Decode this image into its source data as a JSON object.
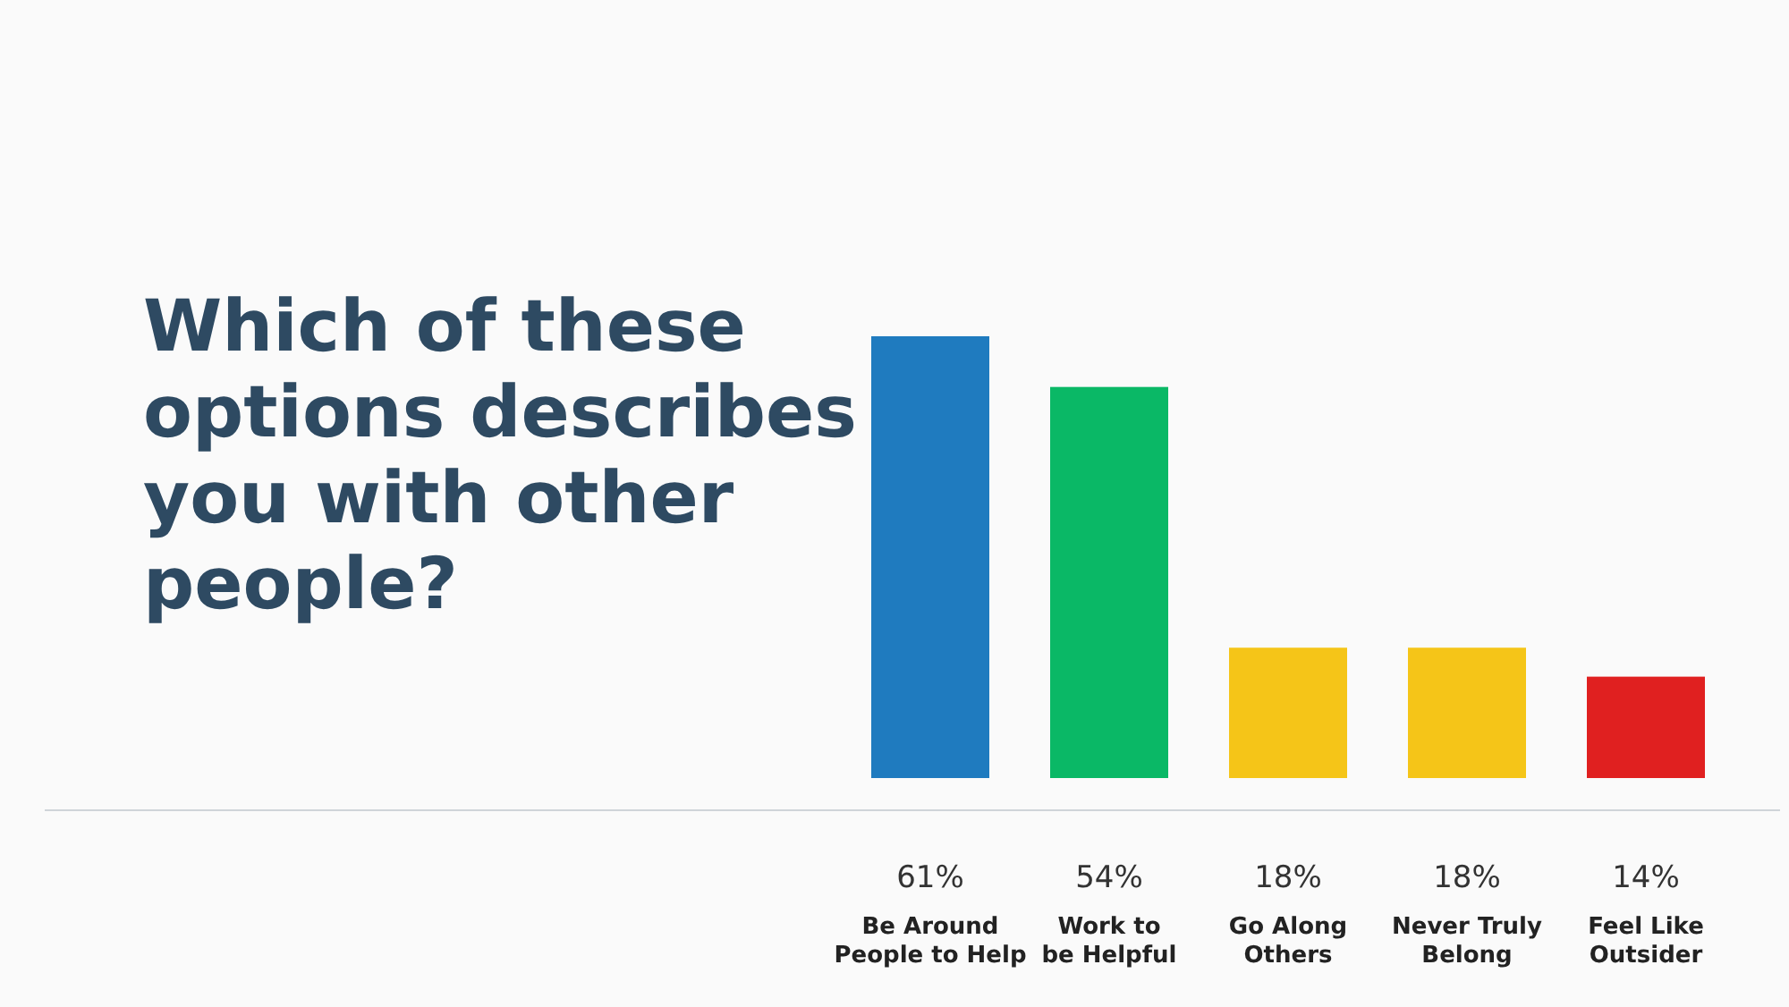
{
  "chart_data": {
    "type": "bar",
    "title": "Which of these options describes you with other people?",
    "categories": [
      "Be Around People to Help",
      "Work to be Helpful",
      "Go Along Others",
      "Never Truly Belong",
      "Feel Like Outsider"
    ],
    "values": [
      61,
      54,
      18,
      18,
      14
    ],
    "colors": [
      "#1f7bbf",
      "#0ab866",
      "#f5c518",
      "#f5c518",
      "#e02020"
    ],
    "value_labels": [
      "61%",
      "54%",
      "18%",
      "18%",
      "14%"
    ]
  }
}
